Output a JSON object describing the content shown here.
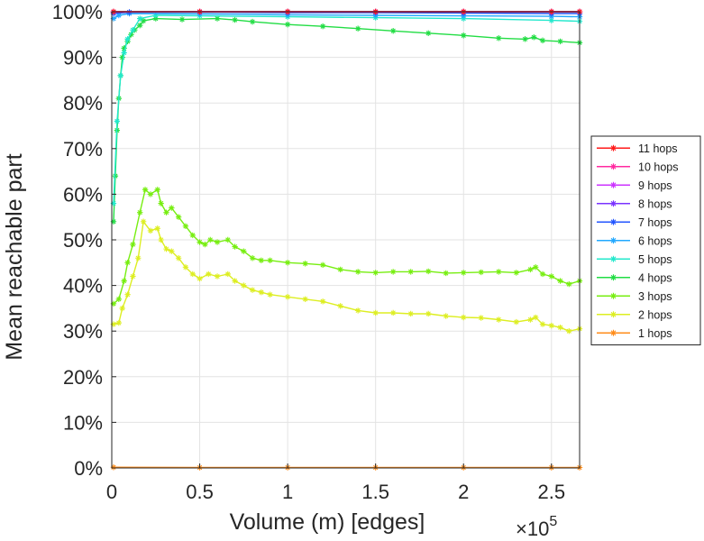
{
  "chart_data": {
    "type": "line",
    "title": "",
    "xlabel": "Volume (m) [edges]",
    "ylabel": "Mean reachable part",
    "x_multiplier_label": "×10",
    "x_multiplier_exponent": "5",
    "xlim": [
      0,
      2.66
    ],
    "ylim": [
      0,
      100
    ],
    "grid": true,
    "legend_position": "right",
    "x_ticks": [
      {
        "value": 0,
        "label": "0"
      },
      {
        "value": 0.5,
        "label": "0.5"
      },
      {
        "value": 1,
        "label": "1"
      },
      {
        "value": 1.5,
        "label": "1.5"
      },
      {
        "value": 2,
        "label": "2"
      },
      {
        "value": 2.5,
        "label": "2.5"
      }
    ],
    "y_ticks": [
      {
        "value": 0,
        "label": "0%"
      },
      {
        "value": 10,
        "label": "10%"
      },
      {
        "value": 20,
        "label": "20%"
      },
      {
        "value": 30,
        "label": "30%"
      },
      {
        "value": 40,
        "label": "40%"
      },
      {
        "value": 50,
        "label": "50%"
      },
      {
        "value": 60,
        "label": "60%"
      },
      {
        "value": 70,
        "label": "70%"
      },
      {
        "value": 80,
        "label": "80%"
      },
      {
        "value": 90,
        "label": "90%"
      },
      {
        "value": 100,
        "label": "100%"
      }
    ],
    "series": [
      {
        "name": "11 hops",
        "color": "#ff1a1a",
        "points": [
          [
            0.01,
            100
          ],
          [
            0.5,
            100
          ],
          [
            1.0,
            100
          ],
          [
            1.5,
            100
          ],
          [
            2.0,
            100
          ],
          [
            2.5,
            100
          ],
          [
            2.66,
            100
          ]
        ]
      },
      {
        "name": "10 hops",
        "color": "#ff2aa0",
        "points": [
          [
            0.01,
            100
          ],
          [
            0.5,
            100
          ],
          [
            1.0,
            100
          ],
          [
            1.5,
            100
          ],
          [
            2.0,
            100
          ],
          [
            2.5,
            100
          ],
          [
            2.66,
            100
          ]
        ]
      },
      {
        "name": "9 hops",
        "color": "#cc33ff",
        "points": [
          [
            0.01,
            100
          ],
          [
            0.5,
            100
          ],
          [
            1.0,
            100
          ],
          [
            1.5,
            100
          ],
          [
            2.0,
            100
          ],
          [
            2.5,
            100
          ],
          [
            2.66,
            100
          ]
        ]
      },
      {
        "name": "8 hops",
        "color": "#7a33ff",
        "points": [
          [
            0.01,
            99.9
          ],
          [
            0.5,
            100
          ],
          [
            1.0,
            100
          ],
          [
            1.5,
            100
          ],
          [
            2.0,
            100
          ],
          [
            2.5,
            100
          ],
          [
            2.66,
            100
          ]
        ]
      },
      {
        "name": "7 hops",
        "color": "#2255ff",
        "points": [
          [
            0.01,
            99.6
          ],
          [
            0.1,
            99.9
          ],
          [
            0.5,
            99.9
          ],
          [
            1.0,
            99.8
          ],
          [
            1.5,
            99.8
          ],
          [
            2.0,
            99.7
          ],
          [
            2.5,
            99.6
          ],
          [
            2.66,
            99.6
          ]
        ]
      },
      {
        "name": "6 hops",
        "color": "#22a8ff",
        "points": [
          [
            0.01,
            98.5
          ],
          [
            0.04,
            99.2
          ],
          [
            0.1,
            99.6
          ],
          [
            0.5,
            99.5
          ],
          [
            1.0,
            99.3
          ],
          [
            1.5,
            99.2
          ],
          [
            2.0,
            99.1
          ],
          [
            2.5,
            99.0
          ],
          [
            2.66,
            98.9
          ]
        ]
      },
      {
        "name": "5 hops",
        "color": "#22e8cc",
        "points": [
          [
            0.01,
            58
          ],
          [
            0.03,
            76
          ],
          [
            0.05,
            86
          ],
          [
            0.07,
            91
          ],
          [
            0.09,
            94
          ],
          [
            0.12,
            96
          ],
          [
            0.16,
            98.5
          ],
          [
            0.25,
            99.2
          ],
          [
            0.5,
            99.1
          ],
          [
            1.0,
            98.9
          ],
          [
            1.5,
            98.7
          ],
          [
            2.0,
            98.5
          ],
          [
            2.5,
            98.1
          ],
          [
            2.66,
            97.9
          ]
        ]
      },
      {
        "name": "4 hops",
        "color": "#22dd44",
        "points": [
          [
            0.01,
            54
          ],
          [
            0.02,
            64
          ],
          [
            0.03,
            74
          ],
          [
            0.04,
            81
          ],
          [
            0.05,
            86
          ],
          [
            0.06,
            90
          ],
          [
            0.07,
            92
          ],
          [
            0.09,
            93.5
          ],
          [
            0.11,
            95
          ],
          [
            0.13,
            96
          ],
          [
            0.16,
            97
          ],
          [
            0.18,
            98
          ],
          [
            0.25,
            98.5
          ],
          [
            0.4,
            98.3
          ],
          [
            0.6,
            98.5
          ],
          [
            0.7,
            98.2
          ],
          [
            0.8,
            97.8
          ],
          [
            1.0,
            97.2
          ],
          [
            1.2,
            96.8
          ],
          [
            1.4,
            96.3
          ],
          [
            1.6,
            95.8
          ],
          [
            1.8,
            95.3
          ],
          [
            2.0,
            94.8
          ],
          [
            2.2,
            94.2
          ],
          [
            2.35,
            94.0
          ],
          [
            2.4,
            94.4
          ],
          [
            2.45,
            93.7
          ],
          [
            2.55,
            93.5
          ],
          [
            2.66,
            93.2
          ]
        ]
      },
      {
        "name": "3 hops",
        "color": "#77ee11",
        "points": [
          [
            0.01,
            36
          ],
          [
            0.04,
            37
          ],
          [
            0.07,
            41
          ],
          [
            0.09,
            45
          ],
          [
            0.12,
            49
          ],
          [
            0.16,
            56
          ],
          [
            0.19,
            61
          ],
          [
            0.22,
            60
          ],
          [
            0.26,
            61
          ],
          [
            0.28,
            58
          ],
          [
            0.31,
            56
          ],
          [
            0.34,
            57
          ],
          [
            0.38,
            55
          ],
          [
            0.42,
            53
          ],
          [
            0.46,
            51
          ],
          [
            0.5,
            49.5
          ],
          [
            0.53,
            49
          ],
          [
            0.56,
            50
          ],
          [
            0.6,
            49.5
          ],
          [
            0.66,
            50
          ],
          [
            0.7,
            48.5
          ],
          [
            0.75,
            47.5
          ],
          [
            0.8,
            46
          ],
          [
            0.85,
            45.5
          ],
          [
            0.9,
            45.5
          ],
          [
            1.0,
            45
          ],
          [
            1.1,
            44.8
          ],
          [
            1.2,
            44.5
          ],
          [
            1.3,
            43.5
          ],
          [
            1.4,
            43
          ],
          [
            1.5,
            42.8
          ],
          [
            1.6,
            43
          ],
          [
            1.7,
            43
          ],
          [
            1.8,
            43.1
          ],
          [
            1.9,
            42.7
          ],
          [
            2.0,
            42.8
          ],
          [
            2.1,
            42.9
          ],
          [
            2.2,
            43
          ],
          [
            2.3,
            42.8
          ],
          [
            2.38,
            43.5
          ],
          [
            2.41,
            44
          ],
          [
            2.45,
            42.5
          ],
          [
            2.5,
            42
          ],
          [
            2.55,
            41
          ],
          [
            2.6,
            40.3
          ],
          [
            2.66,
            41
          ]
        ]
      },
      {
        "name": "2 hops",
        "color": "#ddee22",
        "points": [
          [
            0.01,
            31.5
          ],
          [
            0.04,
            31.8
          ],
          [
            0.06,
            35
          ],
          [
            0.09,
            38
          ],
          [
            0.12,
            42
          ],
          [
            0.15,
            46
          ],
          [
            0.18,
            54
          ],
          [
            0.22,
            52
          ],
          [
            0.26,
            52.5
          ],
          [
            0.28,
            50
          ],
          [
            0.31,
            48
          ],
          [
            0.34,
            47.5
          ],
          [
            0.38,
            46
          ],
          [
            0.42,
            44
          ],
          [
            0.46,
            42.5
          ],
          [
            0.5,
            41.5
          ],
          [
            0.55,
            42.5
          ],
          [
            0.6,
            42
          ],
          [
            0.66,
            42.5
          ],
          [
            0.7,
            41
          ],
          [
            0.75,
            40
          ],
          [
            0.8,
            39
          ],
          [
            0.85,
            38.5
          ],
          [
            0.9,
            38
          ],
          [
            1.0,
            37.5
          ],
          [
            1.1,
            37
          ],
          [
            1.2,
            36.5
          ],
          [
            1.3,
            35.5
          ],
          [
            1.4,
            34.5
          ],
          [
            1.5,
            34
          ],
          [
            1.6,
            34
          ],
          [
            1.7,
            33.8
          ],
          [
            1.8,
            33.8
          ],
          [
            1.9,
            33.3
          ],
          [
            2.0,
            33
          ],
          [
            2.1,
            32.9
          ],
          [
            2.2,
            32.5
          ],
          [
            2.3,
            32
          ],
          [
            2.38,
            32.5
          ],
          [
            2.41,
            33
          ],
          [
            2.45,
            31.5
          ],
          [
            2.5,
            31.2
          ],
          [
            2.55,
            30.8
          ],
          [
            2.6,
            30
          ],
          [
            2.66,
            30.5
          ]
        ]
      },
      {
        "name": "1 hops",
        "color": "#ff8c1a",
        "points": [
          [
            0.01,
            0.15
          ],
          [
            0.5,
            0.1
          ],
          [
            1.0,
            0.1
          ],
          [
            1.5,
            0.1
          ],
          [
            2.0,
            0.1
          ],
          [
            2.5,
            0.1
          ],
          [
            2.66,
            0.1
          ]
        ]
      }
    ]
  }
}
